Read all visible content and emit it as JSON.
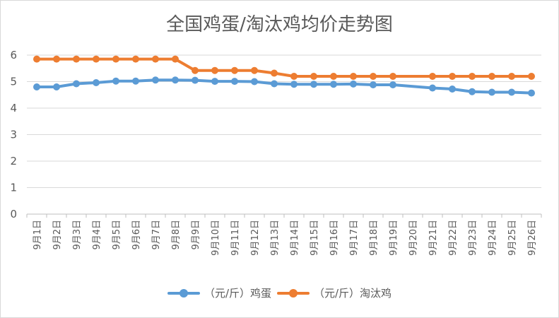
{
  "chart_data": {
    "type": "line",
    "title": "全国鸡蛋/淘汰鸡均价走势图",
    "categories": [
      "9月1日",
      "9月2日",
      "9月3日",
      "9月4日",
      "9月5日",
      "9月6日",
      "9月7日",
      "9月8日",
      "9月9日",
      "9月10日",
      "9月11日",
      "9月12日",
      "9月13日",
      "9月14日",
      "9月15日",
      "9月16日",
      "9月17日",
      "9月18日",
      "9月19日",
      "9月20日",
      "9月21日",
      "9月22日",
      "9月23日",
      "9月24日",
      "9月25日",
      "9月26日"
    ],
    "ylim": [
      0,
      6
    ],
    "yticks": [
      "0",
      "1",
      "2",
      "3",
      "4",
      "5",
      "6"
    ],
    "grid": true,
    "legend_position": "bottom",
    "series": [
      {
        "name": "（元/斤）鸡蛋",
        "color": "#5b9bd5",
        "values": [
          4.8,
          4.8,
          4.92,
          4.96,
          5.02,
          5.02,
          5.06,
          5.06,
          5.05,
          5.01,
          5.01,
          5.0,
          4.92,
          4.9,
          4.9,
          4.9,
          4.91,
          4.88,
          4.88,
          null,
          4.76,
          4.72,
          4.62,
          4.6,
          4.6,
          4.57
        ]
      },
      {
        "name": "（元/斤）淘汰鸡",
        "color": "#ed7d31",
        "values": [
          5.85,
          5.85,
          5.85,
          5.85,
          5.85,
          5.85,
          5.85,
          5.85,
          5.42,
          5.42,
          5.42,
          5.42,
          5.32,
          5.2,
          5.2,
          5.2,
          5.2,
          5.2,
          5.2,
          null,
          5.2,
          5.2,
          5.2,
          5.2,
          5.2,
          5.2
        ]
      }
    ]
  }
}
